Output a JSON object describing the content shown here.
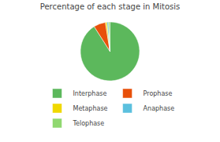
{
  "chart_data": {
    "type": "pie",
    "title": "Percentage of each stage in Mitosis",
    "categories": [
      "Interphase",
      "Prophase",
      "Metaphase",
      "Anaphase",
      "Telophase"
    ],
    "values": [
      91.0,
      6.5,
      0.9,
      0.8,
      0.8
    ],
    "colors": [
      "#5cb85c",
      "#e8500a",
      "#f0d800",
      "#5bc0de",
      "#90d870"
    ],
    "legend": "bottom"
  }
}
